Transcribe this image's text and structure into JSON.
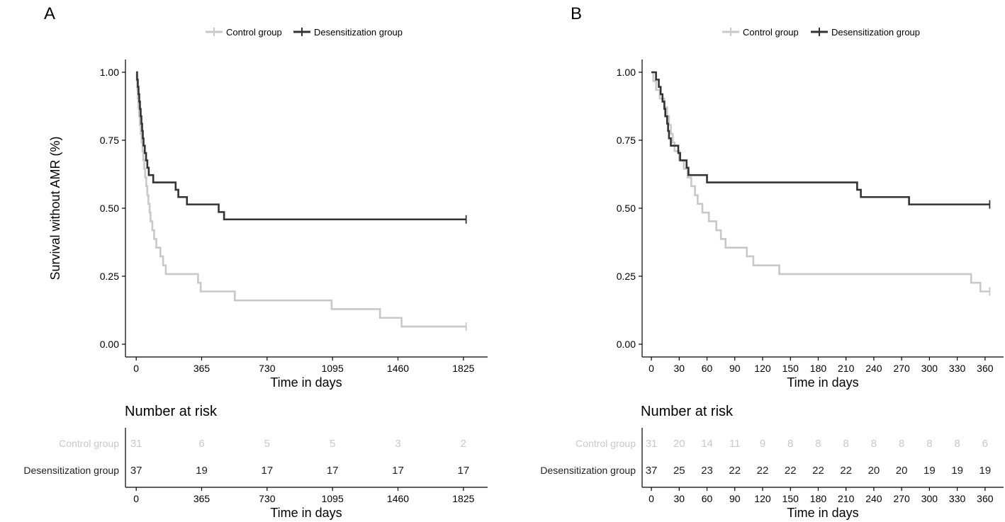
{
  "chart_data": [
    {
      "type": "line",
      "subtype": "kaplan-meier",
      "panel_label": "A",
      "xlabel": "Time in days",
      "ylabel": "Survival without AMR (%)",
      "xlim": [
        -60,
        1960
      ],
      "ylim": [
        0,
        1
      ],
      "x_ticks": [
        0,
        365,
        730,
        1095,
        1460,
        1825
      ],
      "x_tick_labels": [
        "0",
        "365",
        "730",
        "1095",
        "1460",
        "1825"
      ],
      "y_ticks": [
        0,
        0.25,
        0.5,
        0.75,
        1.0
      ],
      "y_tick_labels": [
        "0.00",
        "0.25",
        "0.50",
        "0.75",
        "1.00"
      ],
      "legend": [
        "Control group",
        "Desensitization group"
      ],
      "legend_position": "top-center",
      "grid": false,
      "series": [
        {
          "name": "Control group",
          "color": "#c8c8c8",
          "steps": [
            [
              0,
              1.0
            ],
            [
              3,
              0.968
            ],
            [
              6,
              0.935
            ],
            [
              9,
              0.903
            ],
            [
              12,
              0.871
            ],
            [
              16,
              0.839
            ],
            [
              20,
              0.806
            ],
            [
              25,
              0.774
            ],
            [
              30,
              0.742
            ],
            [
              35,
              0.71
            ],
            [
              40,
              0.677
            ],
            [
              45,
              0.645
            ],
            [
              50,
              0.613
            ],
            [
              56,
              0.581
            ],
            [
              62,
              0.548
            ],
            [
              68,
              0.516
            ],
            [
              75,
              0.484
            ],
            [
              80,
              0.452
            ],
            [
              90,
              0.419
            ],
            [
              100,
              0.387
            ],
            [
              112,
              0.355
            ],
            [
              135,
              0.323
            ],
            [
              150,
              0.29
            ],
            [
              165,
              0.258
            ],
            [
              345,
              0.226
            ],
            [
              360,
              0.194
            ],
            [
              550,
              0.161
            ],
            [
              1090,
              0.129
            ],
            [
              1360,
              0.097
            ],
            [
              1480,
              0.065
            ],
            [
              1840,
              0.065
            ]
          ],
          "censor": [
            [
              1840,
              0.065
            ]
          ]
        },
        {
          "name": "Desensitization group",
          "color": "#333333",
          "steps": [
            [
              0,
              1.0
            ],
            [
              5,
              0.973
            ],
            [
              9,
              0.946
            ],
            [
              13,
              0.919
            ],
            [
              17,
              0.892
            ],
            [
              21,
              0.865
            ],
            [
              25,
              0.838
            ],
            [
              29,
              0.811
            ],
            [
              33,
              0.784
            ],
            [
              37,
              0.757
            ],
            [
              41,
              0.73
            ],
            [
              48,
              0.703
            ],
            [
              55,
              0.676
            ],
            [
              62,
              0.649
            ],
            [
              70,
              0.622
            ],
            [
              95,
              0.595
            ],
            [
              220,
              0.568
            ],
            [
              235,
              0.541
            ],
            [
              283,
              0.514
            ],
            [
              460,
              0.486
            ],
            [
              490,
              0.459
            ],
            [
              1840,
              0.459
            ]
          ],
          "censor": [
            [
              1840,
              0.459
            ]
          ]
        }
      ],
      "risk_table": {
        "title": "Number at risk",
        "xlabel": "Time in days",
        "times": [
          0,
          365,
          730,
          1095,
          1460,
          1825
        ],
        "time_labels": [
          "0",
          "365",
          "730",
          "1095",
          "1460",
          "1825"
        ],
        "rows": [
          {
            "group": "Control group",
            "color": "#c8c8c8",
            "values": [
              "31",
              "6",
              "5",
              "5",
              "3",
              "2"
            ]
          },
          {
            "group": "Desensitization group",
            "color": "#222222",
            "values": [
              "37",
              "19",
              "17",
              "17",
              "17",
              "17"
            ]
          }
        ]
      }
    },
    {
      "type": "line",
      "subtype": "kaplan-meier",
      "panel_label": "B",
      "xlabel": "Time in days",
      "ylabel": "",
      "xlim": [
        -10,
        380
      ],
      "ylim": [
        0,
        1
      ],
      "x_ticks": [
        0,
        30,
        60,
        90,
        120,
        150,
        180,
        210,
        240,
        270,
        300,
        330,
        360
      ],
      "x_tick_labels": [
        "0",
        "30",
        "60",
        "90",
        "120",
        "150",
        "180",
        "210",
        "240",
        "270",
        "300",
        "330",
        "360"
      ],
      "y_ticks": [
        0,
        0.25,
        0.5,
        0.75,
        1.0
      ],
      "y_tick_labels": [
        "0.00",
        "0.25",
        "0.50",
        "0.75",
        "1.00"
      ],
      "legend": [
        "Control group",
        "Desensitization group"
      ],
      "legend_position": "top-center",
      "grid": false,
      "series": [
        {
          "name": "Control group",
          "color": "#c8c8c8",
          "steps": [
            [
              0,
              1.0
            ],
            [
              2,
              0.968
            ],
            [
              5,
              0.935
            ],
            [
              9,
              0.903
            ],
            [
              14,
              0.871
            ],
            [
              17,
              0.839
            ],
            [
              19,
              0.806
            ],
            [
              21,
              0.774
            ],
            [
              23,
              0.742
            ],
            [
              25,
              0.71
            ],
            [
              30,
              0.677
            ],
            [
              35,
              0.645
            ],
            [
              39,
              0.613
            ],
            [
              43,
              0.581
            ],
            [
              47,
              0.548
            ],
            [
              50,
              0.516
            ],
            [
              55,
              0.484
            ],
            [
              62,
              0.452
            ],
            [
              70,
              0.419
            ],
            [
              75,
              0.387
            ],
            [
              80,
              0.355
            ],
            [
              103,
              0.323
            ],
            [
              110,
              0.29
            ],
            [
              138,
              0.258
            ],
            [
              345,
              0.226
            ],
            [
              355,
              0.194
            ],
            [
              365,
              0.194
            ]
          ],
          "censor": [
            [
              365,
              0.194
            ]
          ]
        },
        {
          "name": "Desensitization group",
          "color": "#333333",
          "steps": [
            [
              0,
              1.0
            ],
            [
              5,
              0.973
            ],
            [
              8,
              0.946
            ],
            [
              10,
              0.919
            ],
            [
              12,
              0.892
            ],
            [
              14,
              0.865
            ],
            [
              15,
              0.838
            ],
            [
              17,
              0.811
            ],
            [
              18,
              0.784
            ],
            [
              19,
              0.757
            ],
            [
              21,
              0.73
            ],
            [
              29,
              0.703
            ],
            [
              31,
              0.676
            ],
            [
              38,
              0.649
            ],
            [
              40,
              0.622
            ],
            [
              60,
              0.595
            ],
            [
              222,
              0.568
            ],
            [
              226,
              0.541
            ],
            [
              278,
              0.514
            ],
            [
              365,
              0.514
            ]
          ],
          "censor": [
            [
              365,
              0.514
            ]
          ]
        }
      ],
      "risk_table": {
        "title": "Number at risk",
        "xlabel": "Time in days",
        "times": [
          0,
          30,
          60,
          90,
          120,
          150,
          180,
          210,
          240,
          270,
          300,
          330,
          360
        ],
        "time_labels": [
          "0",
          "30",
          "60",
          "90",
          "120",
          "150",
          "180",
          "210",
          "240",
          "270",
          "300",
          "330",
          "360"
        ],
        "rows": [
          {
            "group": "Control group",
            "color": "#c8c8c8",
            "values": [
              "31",
              "20",
              "14",
              "11",
              "9",
              "8",
              "8",
              "8",
              "8",
              "8",
              "8",
              "8",
              "6"
            ]
          },
          {
            "group": "Desensitization group",
            "color": "#222222",
            "values": [
              "37",
              "25",
              "23",
              "22",
              "22",
              "22",
              "22",
              "22",
              "20",
              "20",
              "19",
              "19",
              "19"
            ]
          }
        ]
      }
    }
  ]
}
